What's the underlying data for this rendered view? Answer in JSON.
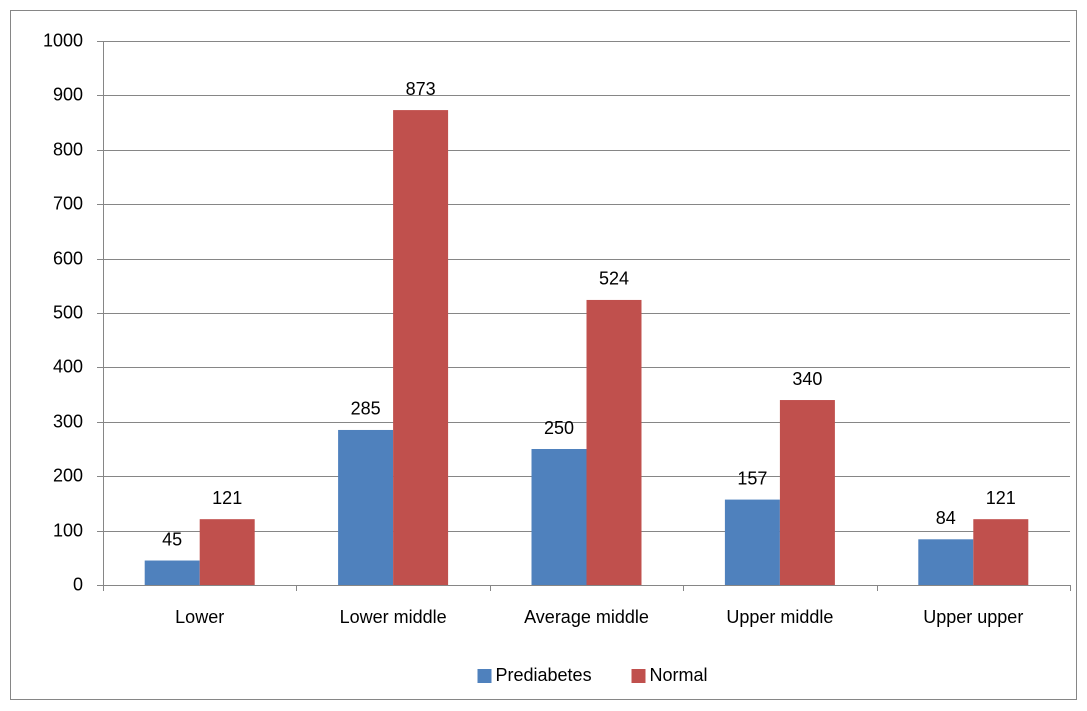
{
  "chart_data": {
    "type": "bar",
    "categories": [
      "Lower",
      "Lower middle",
      "Average middle",
      "Upper middle",
      "Upper upper"
    ],
    "series": [
      {
        "name": "Prediabetes",
        "color": "#4f81bd",
        "values": [
          45,
          285,
          250,
          157,
          84
        ]
      },
      {
        "name": "Normal",
        "color": "#c0504d",
        "values": [
          121,
          873,
          524,
          340,
          121
        ]
      }
    ],
    "ylim": [
      0,
      1000
    ],
    "yticks": [
      0,
      100,
      200,
      300,
      400,
      500,
      600,
      700,
      800,
      900,
      1000
    ],
    "grid": true,
    "legend": "bottom"
  }
}
